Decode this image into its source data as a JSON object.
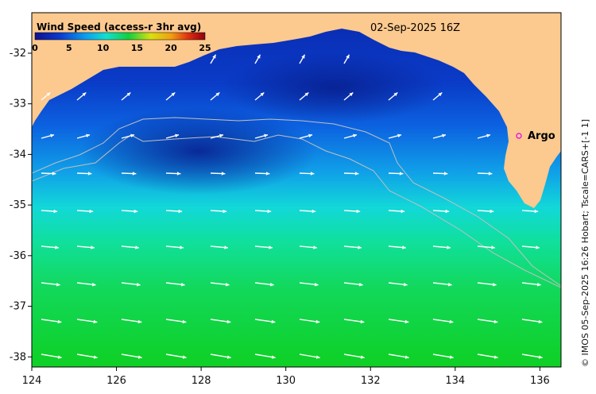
{
  "map": {
    "legend_title": "Wind Speed (access-r 3hr avg)",
    "colorbar_ticks": [
      "0",
      "5",
      "10",
      "15",
      "20",
      "25"
    ],
    "timestamp": "02-Sep-2025 16Z",
    "station_label": "Argo",
    "credit": "© IMOS 05-Sep-2025 16:26 Hobart; Tscale=CARS+[-1 1]",
    "x_tick_labels": [
      "124",
      "126",
      "128",
      "130",
      "132",
      "134",
      "136"
    ],
    "y_tick_labels": [
      "-32",
      "-33",
      "-34",
      "-35",
      "-36",
      "-37",
      "-38"
    ],
    "lon_range": [
      124,
      136.5
    ],
    "lat_range": [
      -38.2,
      -31.2
    ],
    "land_color": "#fcc98f",
    "station_color": "#e020e0"
  }
}
